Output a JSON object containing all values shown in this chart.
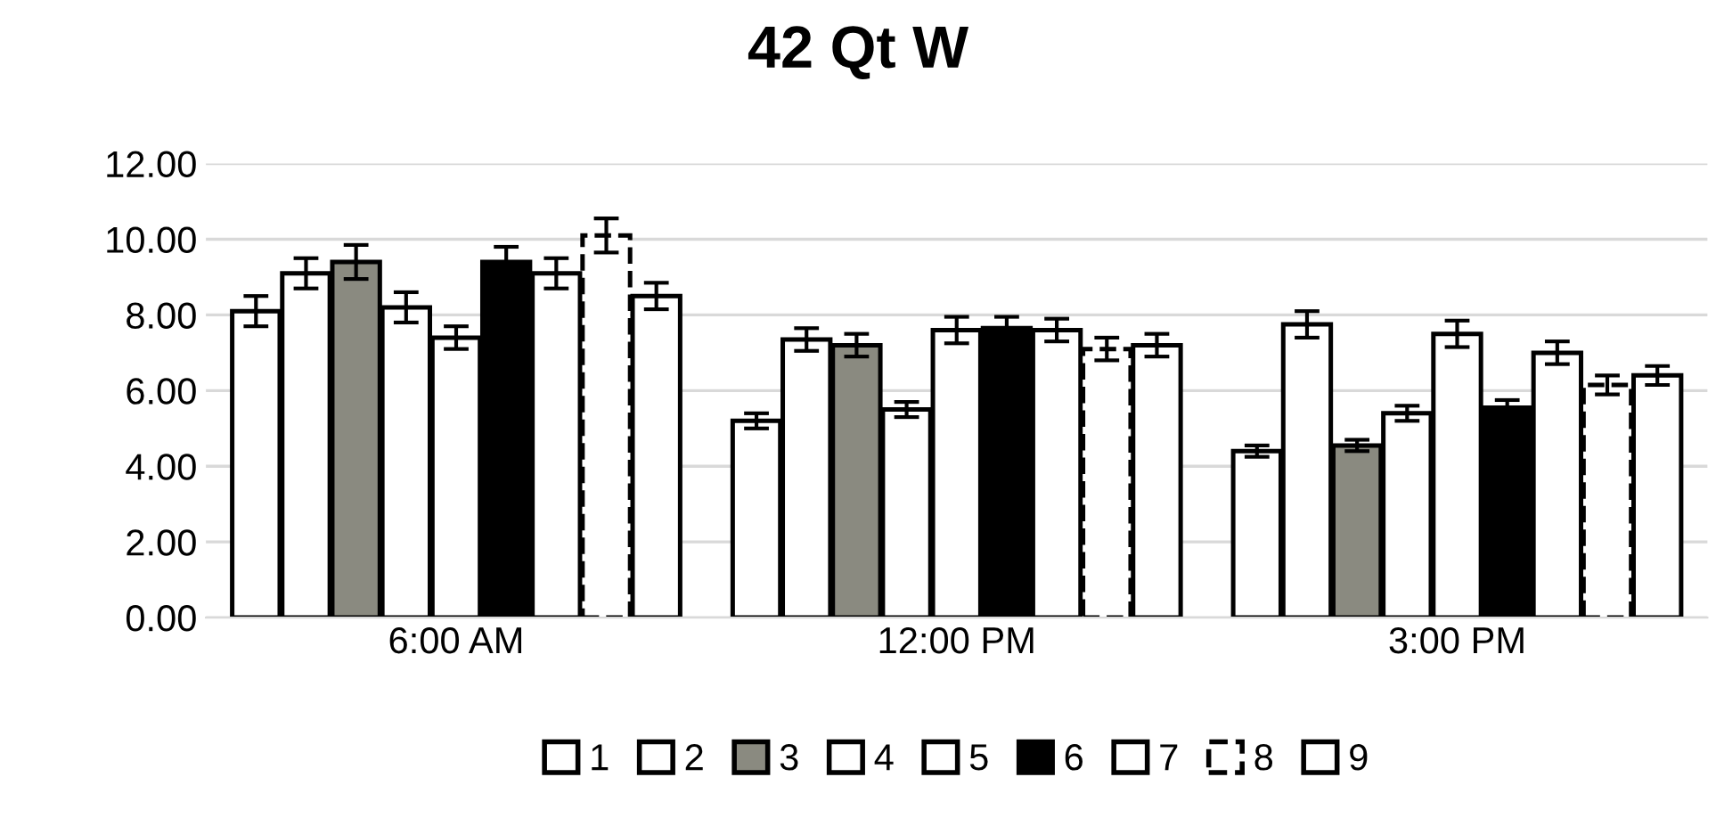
{
  "chart_data": {
    "type": "bar",
    "title": "42 Qt W",
    "categories": [
      "6:00 AM",
      "12:00 PM",
      "3:00 PM"
    ],
    "ylim": [
      0,
      12
    ],
    "yticks": [
      {
        "value": 0,
        "label": "0.00"
      },
      {
        "value": 2,
        "label": "2.00"
      },
      {
        "value": 4,
        "label": "4.00"
      },
      {
        "value": 6,
        "label": "6.00"
      },
      {
        "value": 8,
        "label": "8.00"
      },
      {
        "value": 10,
        "label": "10.00"
      },
      {
        "value": 12,
        "label": "12.00"
      }
    ],
    "grid": "y",
    "legend": "bottom",
    "series": [
      {
        "name": "1",
        "color": "#ffffff",
        "values": [
          8.1,
          5.2,
          4.4
        ],
        "errors": [
          0.4,
          0.2,
          0.15
        ]
      },
      {
        "name": "2",
        "color": "#ffffff",
        "values": [
          9.1,
          7.35,
          7.75
        ],
        "errors": [
          0.4,
          0.3,
          0.35
        ]
      },
      {
        "name": "3",
        "color": "#8a8a80",
        "values": [
          9.4,
          7.2,
          4.55
        ],
        "errors": [
          0.45,
          0.3,
          0.15
        ]
      },
      {
        "name": "4",
        "color": "#ffffff",
        "values": [
          8.2,
          5.5,
          5.4
        ],
        "errors": [
          0.4,
          0.2,
          0.2
        ]
      },
      {
        "name": "5",
        "color": "#ffffff",
        "values": [
          7.4,
          7.6,
          7.5
        ],
        "errors": [
          0.3,
          0.35,
          0.35
        ]
      },
      {
        "name": "6",
        "color": "#000000",
        "values": [
          9.4,
          7.65,
          5.55
        ],
        "errors": [
          0.4,
          0.3,
          0.2
        ]
      },
      {
        "name": "7",
        "color": "#ffffff",
        "values": [
          9.1,
          7.6,
          7.0
        ],
        "errors": [
          0.4,
          0.3,
          0.3
        ]
      },
      {
        "name": "8",
        "color": "#ffffff",
        "values": [
          10.1,
          7.1,
          6.15
        ],
        "errors": [
          0.45,
          0.3,
          0.25
        ]
      },
      {
        "name": "9",
        "color": "#ffffff",
        "values": [
          8.5,
          7.2,
          6.4
        ],
        "errors": [
          0.35,
          0.3,
          0.25
        ]
      }
    ]
  }
}
